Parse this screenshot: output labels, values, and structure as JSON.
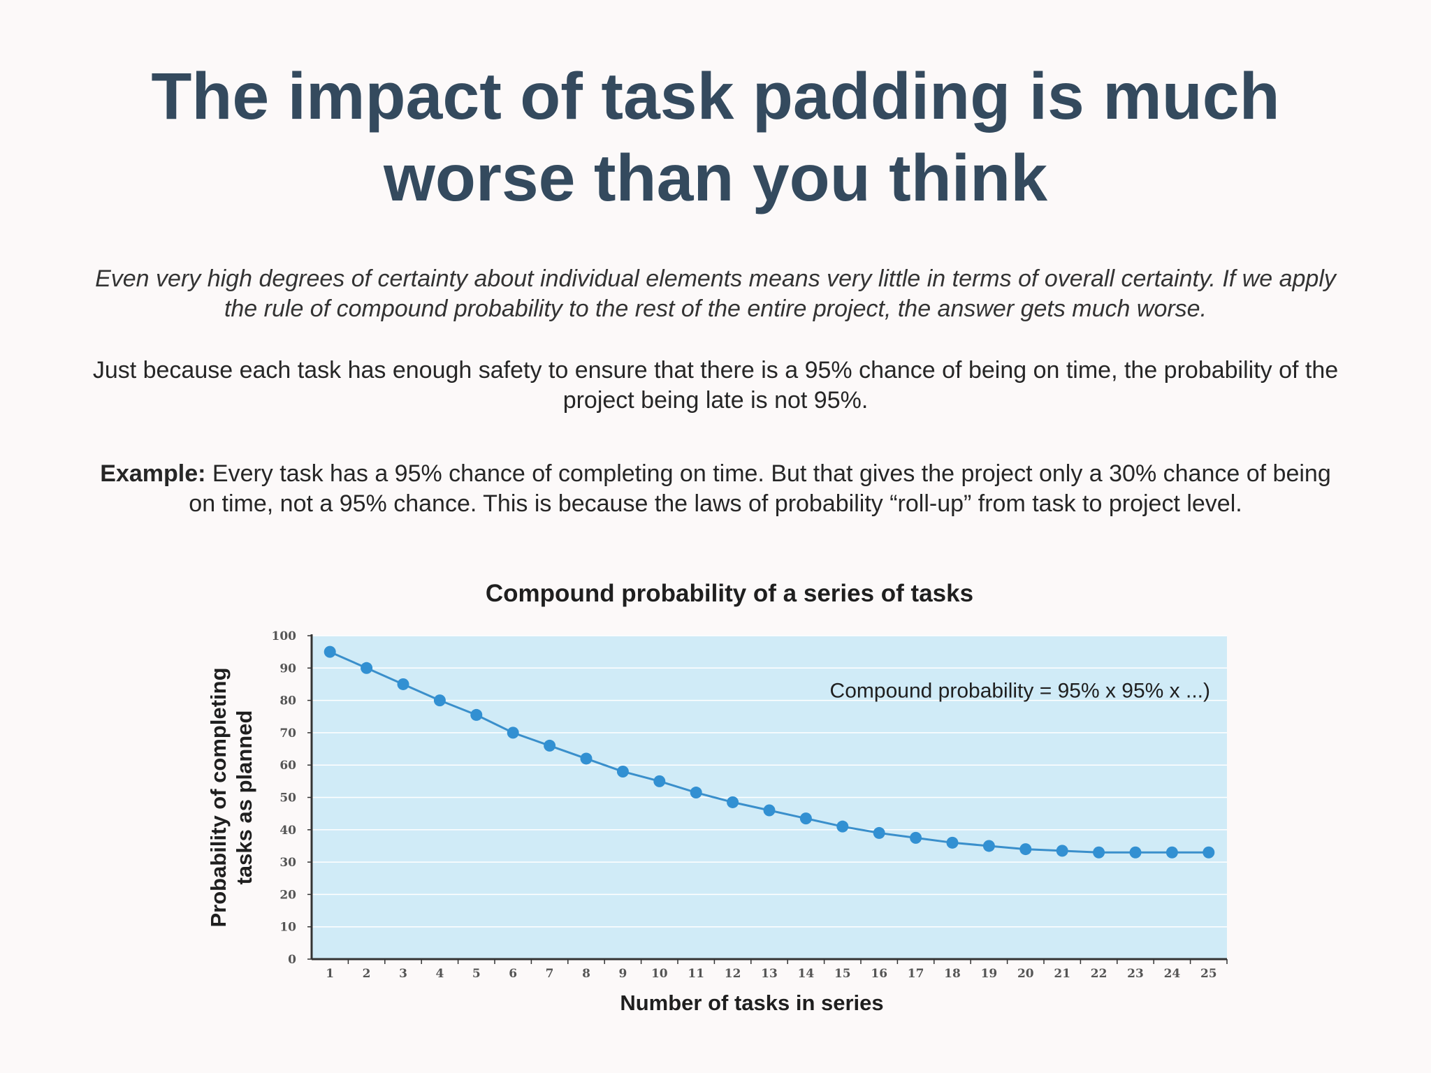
{
  "slide": {
    "title_line1": "The impact of task padding is much",
    "title_line2": "worse than you think",
    "paragraph_italic": "Even very high degrees of certainty about individual elements means very little in terms of overall certainty. If we apply the rule of compound probability to the rest of the entire project, the answer gets much worse.",
    "paragraph_2": "Just because each task has enough safety to ensure that there is a 95% chance of being on time, the probability of the project being late is not 95%.",
    "example_label": "Example:",
    "example_text": " Every task has a 95% chance of completing on time. But that gives the project only a 30% chance of being on time, not a 95% chance. This is because the laws of probability “roll-up” from task to project level."
  },
  "colors": {
    "title": "#344a5e",
    "plot_bg": "#d0ebf7",
    "line": "#3a8fcb",
    "marker": "#3290d2",
    "axis": "#333333"
  },
  "chart_data": {
    "type": "line",
    "title": "Compound probability of a series of tasks",
    "xlabel": "Number of tasks in series",
    "ylabel_line1": "Probability of completing",
    "ylabel_line2": "tasks as planned",
    "annotation": "Compound probability = 95% x 95% x ...)",
    "x": [
      1,
      2,
      3,
      4,
      5,
      6,
      7,
      8,
      9,
      10,
      11,
      12,
      13,
      14,
      15,
      16,
      17,
      18,
      19,
      20,
      21,
      22,
      23,
      24,
      25
    ],
    "x_tick_labels": [
      "1",
      "2",
      "3",
      "4",
      "5",
      "6",
      "7",
      "8",
      "9",
      "10",
      "11",
      "12",
      "13",
      "14",
      "15",
      "16",
      "17",
      "18",
      "19",
      "20",
      "21",
      "22",
      "23",
      "24",
      "25"
    ],
    "y_ticks": [
      0,
      10,
      20,
      30,
      40,
      50,
      60,
      70,
      80,
      90,
      100
    ],
    "y_tick_labels": [
      "0",
      "10",
      "20",
      "30",
      "40",
      "50",
      "60",
      "70",
      "80",
      "90",
      "100"
    ],
    "series": [
      {
        "name": "Compound probability",
        "values": [
          95,
          90,
          85,
          80,
          75.5,
          70,
          66,
          62,
          58,
          55,
          51.5,
          48.5,
          46,
          43.5,
          41,
          39,
          37.5,
          36,
          35,
          34,
          33.5,
          33,
          33,
          33,
          33
        ]
      }
    ],
    "ylim": [
      0,
      100
    ],
    "xlim": [
      0.5,
      25.5
    ],
    "grid": true
  }
}
